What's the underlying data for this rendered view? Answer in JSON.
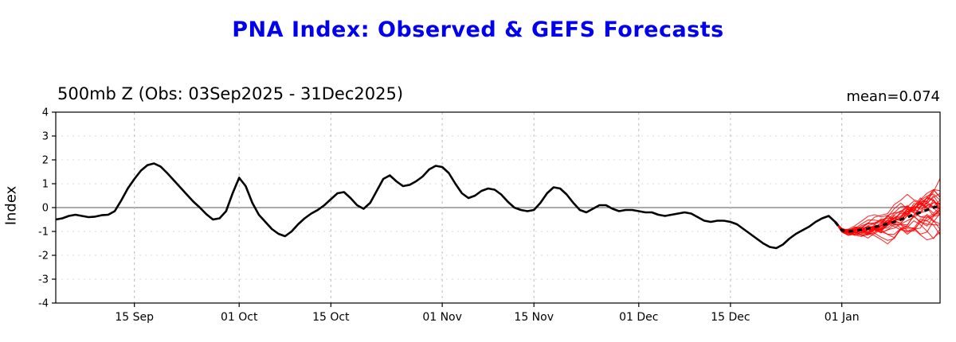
{
  "title": {
    "text": "PNA Index: Observed & GEFS Forecasts",
    "color": "#0000EE"
  },
  "chart_data": {
    "type": "line",
    "subtitle": "500mb Z (Obs: 03Sep2025 - 31Dec2025)",
    "mean_label": "mean=0.074",
    "ylabel": "Index",
    "ylim": [
      -4,
      4
    ],
    "y_ticks": [
      -4,
      -3,
      -2,
      -1,
      0,
      1,
      2,
      3,
      4
    ],
    "x_ticks": [
      {
        "label": "15 Sep",
        "day": 12
      },
      {
        "label": "01 Oct",
        "day": 28
      },
      {
        "label": "15 Oct",
        "day": 42
      },
      {
        "label": "01 Nov",
        "day": 59
      },
      {
        "label": "15 Nov",
        "day": 73
      },
      {
        "label": "01 Dec",
        "day": 89
      },
      {
        "label": "15 Dec",
        "day": 103
      },
      {
        "label": "01 Jan",
        "day": 120
      }
    ],
    "x_range_days": [
      0,
      135
    ],
    "grid": true,
    "legend": "none",
    "observed": {
      "name": "Observed PNA index (daily, 03Sep2025 - 31Dec2025)",
      "start_day": 0,
      "values": [
        -0.5,
        -0.45,
        -0.35,
        -0.3,
        -0.35,
        -0.4,
        -0.38,
        -0.32,
        -0.3,
        -0.15,
        0.3,
        0.8,
        1.2,
        1.55,
        1.78,
        1.85,
        1.72,
        1.45,
        1.15,
        0.85,
        0.55,
        0.25,
        0.0,
        -0.28,
        -0.5,
        -0.45,
        -0.15,
        0.6,
        1.25,
        0.9,
        0.2,
        -0.3,
        -0.6,
        -0.9,
        -1.1,
        -1.2,
        -1.0,
        -0.7,
        -0.45,
        -0.25,
        -0.1,
        0.1,
        0.35,
        0.6,
        0.65,
        0.4,
        0.1,
        -0.05,
        0.2,
        0.7,
        1.2,
        1.35,
        1.1,
        0.9,
        0.95,
        1.1,
        1.3,
        1.6,
        1.75,
        1.7,
        1.45,
        1.0,
        0.6,
        0.4,
        0.5,
        0.7,
        0.8,
        0.75,
        0.55,
        0.25,
        0.0,
        -0.1,
        -0.15,
        -0.1,
        0.2,
        0.6,
        0.85,
        0.8,
        0.55,
        0.2,
        -0.1,
        -0.2,
        -0.05,
        0.1,
        0.1,
        -0.05,
        -0.15,
        -0.1,
        -0.1,
        -0.15,
        -0.2,
        -0.2,
        -0.3,
        -0.35,
        -0.3,
        -0.25,
        -0.2,
        -0.25,
        -0.4,
        -0.55,
        -0.6,
        -0.55,
        -0.55,
        -0.6,
        -0.7,
        -0.9,
        -1.1,
        -1.3,
        -1.5,
        -1.65,
        -1.7,
        -1.55,
        -1.3,
        -1.1,
        -0.95,
        -0.8,
        -0.6,
        -0.45,
        -0.35,
        -0.6
      ]
    },
    "forecast": {
      "name": "GEFS ensemble forecast",
      "start_day": 119,
      "mean": [
        -0.6,
        -0.95,
        -1.0,
        -0.97,
        -0.93,
        -0.88,
        -0.82,
        -0.75,
        -0.68,
        -0.6,
        -0.5,
        -0.4,
        -0.3,
        -0.2,
        -0.1,
        0.0,
        0.074
      ],
      "mean_final": 0.074,
      "member_count": 28,
      "final_spread": [
        -1.2,
        1.55
      ]
    },
    "colors": {
      "observed": "#000000",
      "ensemble_member": "#ff0000",
      "ensemble_mean": "#000000",
      "grid": "#bbbbbb",
      "zero_line": "#555555",
      "frame": "#000000"
    }
  }
}
